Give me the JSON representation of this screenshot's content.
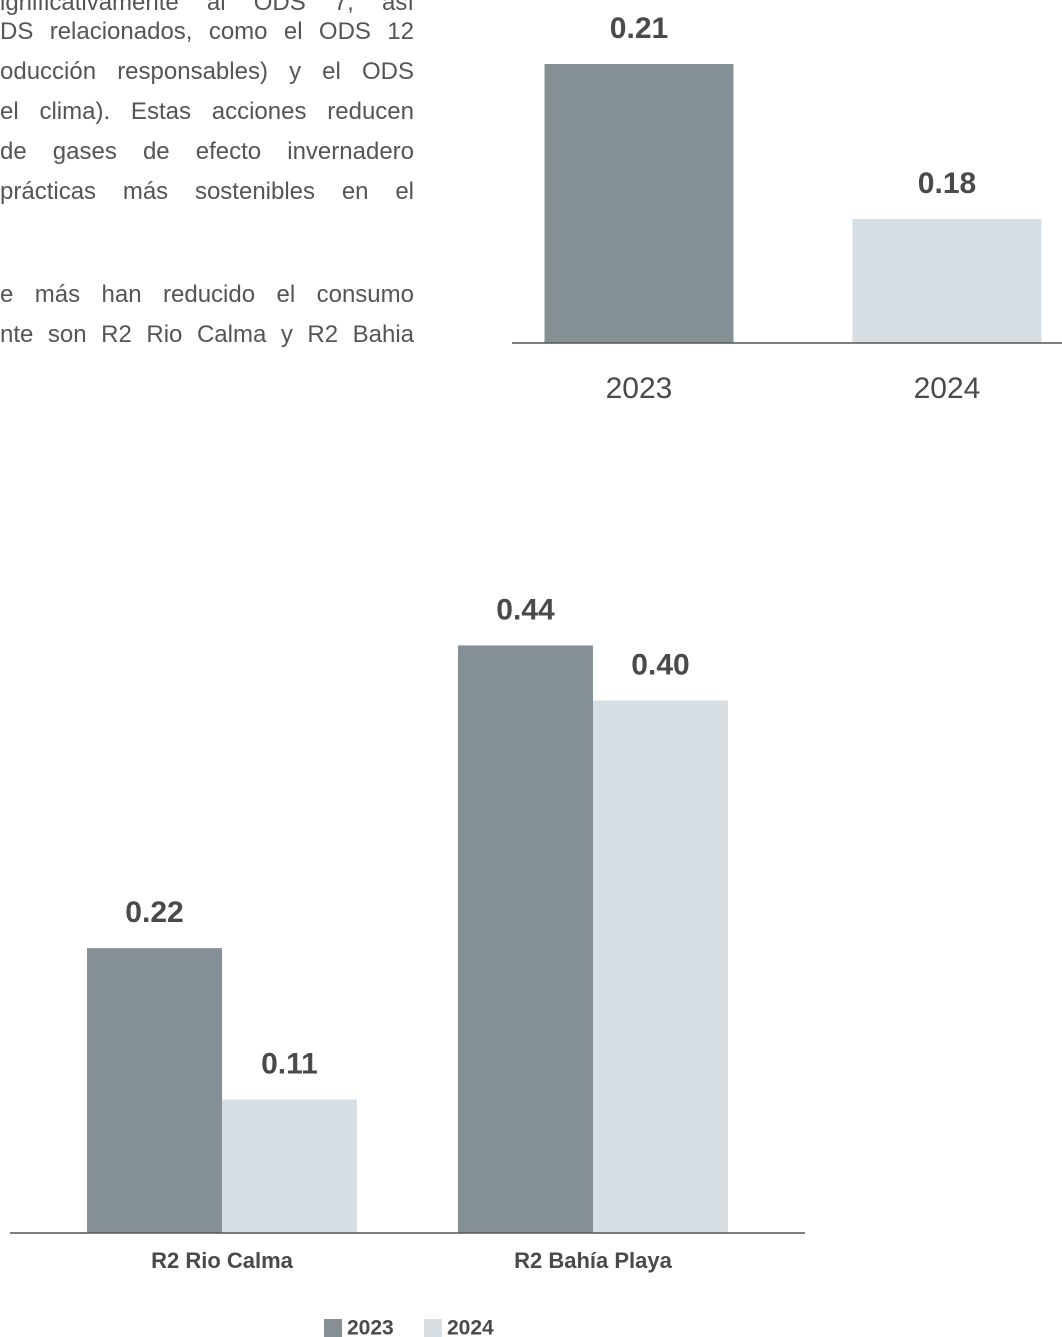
{
  "text": {
    "lines": [
      "ignificativamente al ODS 7, así",
      "DS relacionados, como el ODS 12",
      "oducción responsables) y el ODS",
      "el clima). Estas acciones reducen",
      "de gases de efecto invernadero",
      "prácticas más sostenibles en el",
      "e más han reducido el consumo",
      "nte son R2 Rio Calma y R2 Bahia"
    ]
  },
  "chart_data": [
    {
      "type": "bar",
      "categories": [
        "2023",
        "2024"
      ],
      "values": [
        0.21,
        0.18
      ],
      "colors": [
        "#858f96",
        "#d7dfe5"
      ],
      "ylim": [
        0.156,
        0.216
      ]
    },
    {
      "type": "grouped_bar",
      "categories": [
        "R2 Rio Calma",
        "R2 Bahía Playa"
      ],
      "series": [
        {
          "name": "2023",
          "color": "#858f96",
          "values": [
            0.22,
            0.44
          ],
          "value_labels": [
            "0.22",
            "0.44"
          ]
        },
        {
          "name": "2024",
          "color": "#d7dfe5",
          "values": [
            0.11,
            0.4
          ],
          "value_labels": [
            "0.11",
            "0.40"
          ]
        }
      ],
      "ylim": [
        0.013,
        0.473
      ],
      "legend": "bottom"
    }
  ]
}
